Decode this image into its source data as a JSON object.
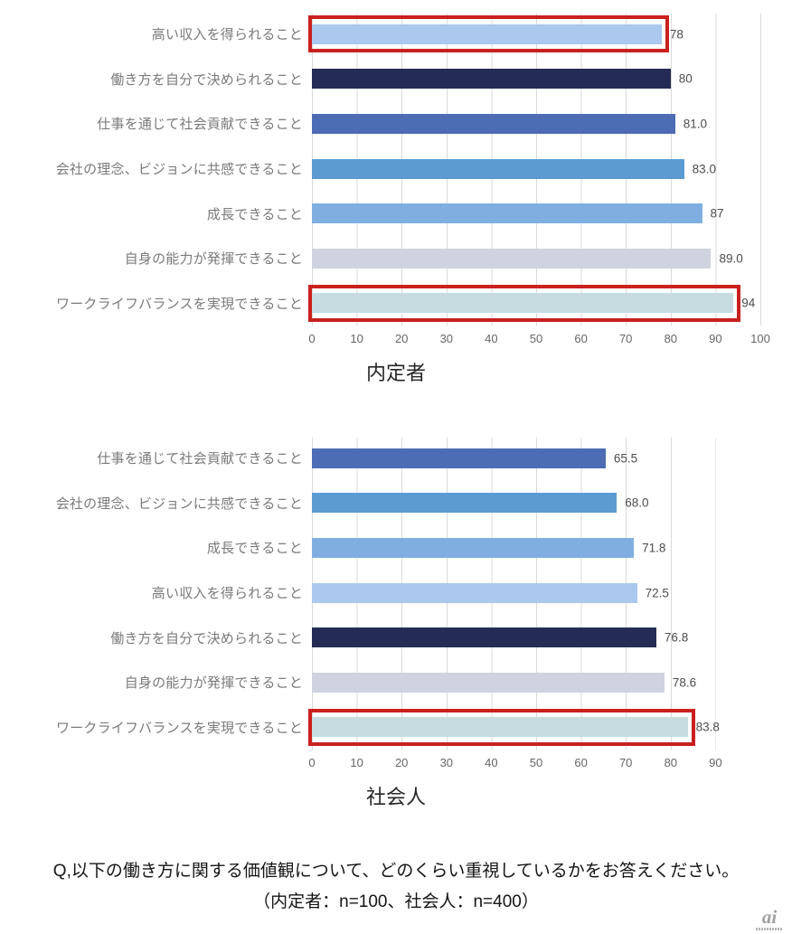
{
  "highlight_color": "#c9211e",
  "grid_color": "#d9d9d9",
  "caption": {
    "line1": "Q,以下の働き方に関する価値観について、どのくらい重視しているかをお答えください。",
    "line2": "（内定者：n=100、社会人：n=400）"
  },
  "logo": {
    "text": "ai"
  },
  "chart_data": [
    {
      "type": "bar",
      "orientation": "horizontal",
      "title": "内定者",
      "n": 100,
      "xlabel": "",
      "ylabel": "",
      "xlim": [
        0,
        100
      ],
      "ticks": [
        0,
        10,
        20,
        30,
        40,
        50,
        60,
        70,
        80,
        90,
        100
      ],
      "grid": true,
      "legend": false,
      "rows": [
        {
          "label": "高い収入を得られること",
          "value": 78,
          "value_label": "78",
          "color": "#abc8ee",
          "highlighted": true
        },
        {
          "label": "働き方を自分で決められること",
          "value": 80,
          "value_label": "80",
          "color": "#242c55",
          "highlighted": false
        },
        {
          "label": "仕事を通じて社会貢献できること",
          "value": 81.0,
          "value_label": "81.0",
          "color": "#4c6db4",
          "highlighted": false
        },
        {
          "label": "会社の理念、ビジョンに共感できること",
          "value": 83.0,
          "value_label": "83.0",
          "color": "#5b9bd2",
          "highlighted": false
        },
        {
          "label": "成長できること",
          "value": 87,
          "value_label": "87",
          "color": "#7fafe0",
          "highlighted": false
        },
        {
          "label": "自身の能力が発揮できること",
          "value": 89.0,
          "value_label": "89.0",
          "color": "#ced3df",
          "highlighted": false
        },
        {
          "label": "ワークライフバランスを実現できること",
          "value": 94,
          "value_label": "94",
          "color": "#c6dce1",
          "highlighted": true
        }
      ]
    },
    {
      "type": "bar",
      "orientation": "horizontal",
      "title": "社会人",
      "n": 400,
      "xlabel": "",
      "ylabel": "",
      "xlim": [
        0,
        90
      ],
      "ticks": [
        0,
        10,
        20,
        30,
        40,
        50,
        60,
        70,
        80,
        90
      ],
      "grid": true,
      "legend": false,
      "rows": [
        {
          "label": "仕事を通じて社会貢献できること",
          "value": 65.5,
          "value_label": "65.5",
          "color": "#4c6db4",
          "highlighted": false
        },
        {
          "label": "会社の理念、ビジョンに共感できること",
          "value": 68.0,
          "value_label": "68.0",
          "color": "#5b9bd2",
          "highlighted": false
        },
        {
          "label": "成長できること",
          "value": 71.8,
          "value_label": "71.8",
          "color": "#7fafe0",
          "highlighted": false
        },
        {
          "label": "高い収入を得られること",
          "value": 72.5,
          "value_label": "72.5",
          "color": "#abc8ee",
          "highlighted": false
        },
        {
          "label": "働き方を自分で決められること",
          "value": 76.8,
          "value_label": "76.8",
          "color": "#242c55",
          "highlighted": false
        },
        {
          "label": "自身の能力が発揮できること",
          "value": 78.6,
          "value_label": "78.6",
          "color": "#ced3df",
          "highlighted": false
        },
        {
          "label": "ワークライフバランスを実現できること",
          "value": 83.8,
          "value_label": "83.8",
          "color": "#c6dce1",
          "highlighted": true
        }
      ]
    }
  ]
}
